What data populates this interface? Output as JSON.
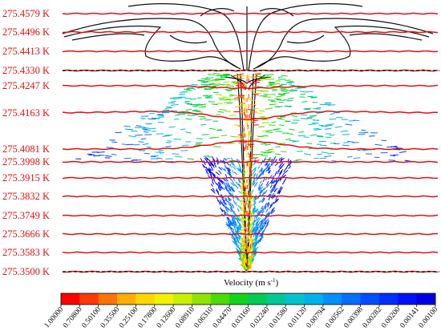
{
  "isotherms": {
    "colors": {
      "line": "#e01010",
      "label": "#e01010"
    },
    "labels": [
      "275.4579 K",
      "275.4496 K",
      "275.4413 K",
      "275.4330 K",
      "275.4247 K",
      "275.4163 K",
      "275.4081 K",
      "275.3998 K",
      "275.3915 K",
      "275.3832 K",
      "275.3749 K",
      "275.3666 K",
      "275.3583 K",
      "275.3500 K"
    ]
  },
  "velocity": {
    "title": "Velocity (m s",
    "title_sup": "-1",
    "title_end": ")"
  },
  "colorbar": {
    "ticks": [
      "1.00000",
      "0.70800",
      "0.50100",
      "0.35500",
      "0.25100",
      "0.17800",
      "0.12600",
      "0.08910",
      "0.06310",
      "0.04470",
      "0.03160",
      "0.02240",
      "0.01580",
      "0.01120",
      "0.00794",
      "0.00562",
      "0.00398",
      "0.00282",
      "0.00200",
      "0.00141",
      "0.00100"
    ],
    "colors": [
      "#ff0000",
      "#ff3a00",
      "#ff7400",
      "#ffae00",
      "#ffd600",
      "#f2f200",
      "#c8f000",
      "#8ee600",
      "#4cdc00",
      "#10d418",
      "#00cc54",
      "#00c896",
      "#00c4cc",
      "#00b0f0",
      "#0090ff",
      "#0070ff",
      "#0050ff",
      "#0030ff",
      "#0010ff",
      "#0000e8"
    ]
  }
}
